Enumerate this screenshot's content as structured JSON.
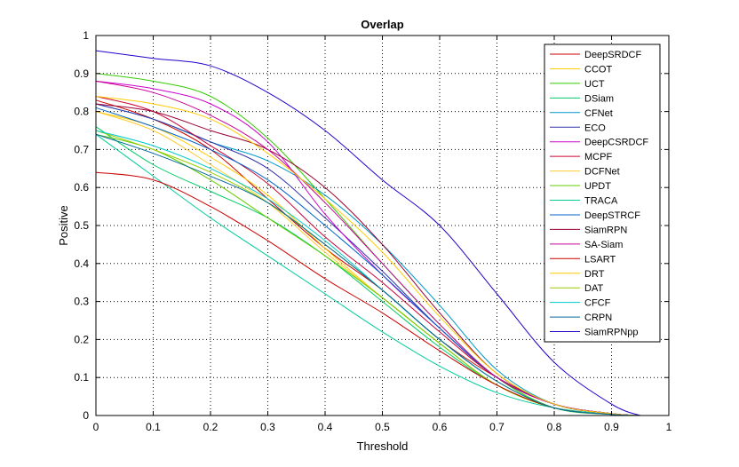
{
  "chart_data": {
    "type": "line",
    "title": "Overlap",
    "xlabel": "Threshold",
    "ylabel": "Positive",
    "xlim": [
      0,
      1
    ],
    "ylim": [
      0,
      1
    ],
    "xticks": [
      "0",
      "0.1",
      "0.2",
      "0.3",
      "0.4",
      "0.5",
      "0.6",
      "0.7",
      "0.8",
      "0.9",
      "1"
    ],
    "yticks": [
      "0",
      "0.1",
      "0.2",
      "0.3",
      "0.4",
      "0.5",
      "0.6",
      "0.7",
      "0.8",
      "0.9",
      "1"
    ],
    "grid": true,
    "legend_position": "top-right",
    "x": [
      0,
      0.1,
      0.2,
      0.3,
      0.4,
      0.5,
      0.6,
      0.7,
      0.8,
      0.9,
      0.95
    ],
    "series": [
      {
        "name": "DeepSRDCF",
        "color": "#cc0000",
        "values": [
          0.83,
          0.78,
          0.7,
          0.57,
          0.44,
          0.33,
          0.2,
          0.1,
          0.03,
          0.005,
          0
        ]
      },
      {
        "name": "CCOT",
        "color": "#ffcc00",
        "values": [
          0.8,
          0.76,
          0.68,
          0.58,
          0.44,
          0.31,
          0.19,
          0.08,
          0.02,
          0.003,
          0
        ]
      },
      {
        "name": "UCT",
        "color": "#33cc00",
        "values": [
          0.9,
          0.88,
          0.84,
          0.73,
          0.57,
          0.4,
          0.24,
          0.1,
          0.02,
          0.003,
          0
        ]
      },
      {
        "name": "DSiam",
        "color": "#00cc66",
        "values": [
          0.76,
          0.66,
          0.59,
          0.52,
          0.42,
          0.3,
          0.18,
          0.08,
          0.02,
          0.003,
          0
        ]
      },
      {
        "name": "CFNet",
        "color": "#0099cc",
        "values": [
          0.82,
          0.78,
          0.72,
          0.67,
          0.58,
          0.45,
          0.29,
          0.12,
          0.03,
          0.005,
          0
        ]
      },
      {
        "name": "ECO",
        "color": "#3333aa",
        "values": [
          0.82,
          0.78,
          0.72,
          0.65,
          0.52,
          0.38,
          0.23,
          0.1,
          0.03,
          0.005,
          0
        ]
      },
      {
        "name": "DeepCSRDCF",
        "color": "#cc00cc",
        "values": [
          0.88,
          0.86,
          0.82,
          0.72,
          0.53,
          0.37,
          0.23,
          0.1,
          0.03,
          0.005,
          0
        ]
      },
      {
        "name": "MCPF",
        "color": "#cc0033",
        "values": [
          0.84,
          0.8,
          0.71,
          0.61,
          0.47,
          0.35,
          0.22,
          0.1,
          0.03,
          0.005,
          0
        ]
      },
      {
        "name": "DCFNet",
        "color": "#ffcc33",
        "values": [
          0.8,
          0.75,
          0.66,
          0.56,
          0.43,
          0.31,
          0.19,
          0.08,
          0.02,
          0.003,
          0
        ]
      },
      {
        "name": "UPDT",
        "color": "#66cc00",
        "values": [
          0.74,
          0.7,
          0.62,
          0.52,
          0.42,
          0.31,
          0.19,
          0.08,
          0.02,
          0.003,
          0
        ]
      },
      {
        "name": "TRACA",
        "color": "#00cc99",
        "values": [
          0.74,
          0.63,
          0.52,
          0.42,
          0.32,
          0.22,
          0.13,
          0.06,
          0.02,
          0.003,
          0
        ]
      },
      {
        "name": "DeepSTRCF",
        "color": "#0066cc",
        "values": [
          0.81,
          0.76,
          0.7,
          0.62,
          0.5,
          0.37,
          0.23,
          0.1,
          0.03,
          0.005,
          0
        ]
      },
      {
        "name": "SiamRPN",
        "color": "#990033",
        "values": [
          0.82,
          0.8,
          0.75,
          0.7,
          0.6,
          0.45,
          0.27,
          0.11,
          0.03,
          0.005,
          0
        ]
      },
      {
        "name": "SA-Siam",
        "color": "#cc0099",
        "values": [
          0.88,
          0.85,
          0.79,
          0.7,
          0.56,
          0.4,
          0.24,
          0.1,
          0.03,
          0.005,
          0
        ]
      },
      {
        "name": "LSART",
        "color": "#cc0000",
        "values": [
          0.64,
          0.62,
          0.55,
          0.46,
          0.36,
          0.27,
          0.17,
          0.08,
          0.02,
          0.003,
          0
        ]
      },
      {
        "name": "DRT",
        "color": "#ffcc00",
        "values": [
          0.84,
          0.82,
          0.78,
          0.69,
          0.57,
          0.43,
          0.26,
          0.11,
          0.03,
          0.005,
          0
        ]
      },
      {
        "name": "DAT",
        "color": "#99cc00",
        "values": [
          0.75,
          0.7,
          0.64,
          0.56,
          0.45,
          0.33,
          0.2,
          0.09,
          0.02,
          0.003,
          0
        ]
      },
      {
        "name": "CFCF",
        "color": "#00cccc",
        "values": [
          0.75,
          0.71,
          0.65,
          0.57,
          0.46,
          0.33,
          0.2,
          0.09,
          0.02,
          0.003,
          0
        ]
      },
      {
        "name": "CRPN",
        "color": "#006699",
        "values": [
          0.74,
          0.69,
          0.63,
          0.56,
          0.45,
          0.33,
          0.2,
          0.09,
          0.02,
          0.003,
          0
        ]
      },
      {
        "name": "SiamRPNpp",
        "color": "#2200cc",
        "values": [
          0.96,
          0.94,
          0.92,
          0.85,
          0.75,
          0.62,
          0.5,
          0.32,
          0.14,
          0.03,
          0
        ]
      }
    ]
  }
}
